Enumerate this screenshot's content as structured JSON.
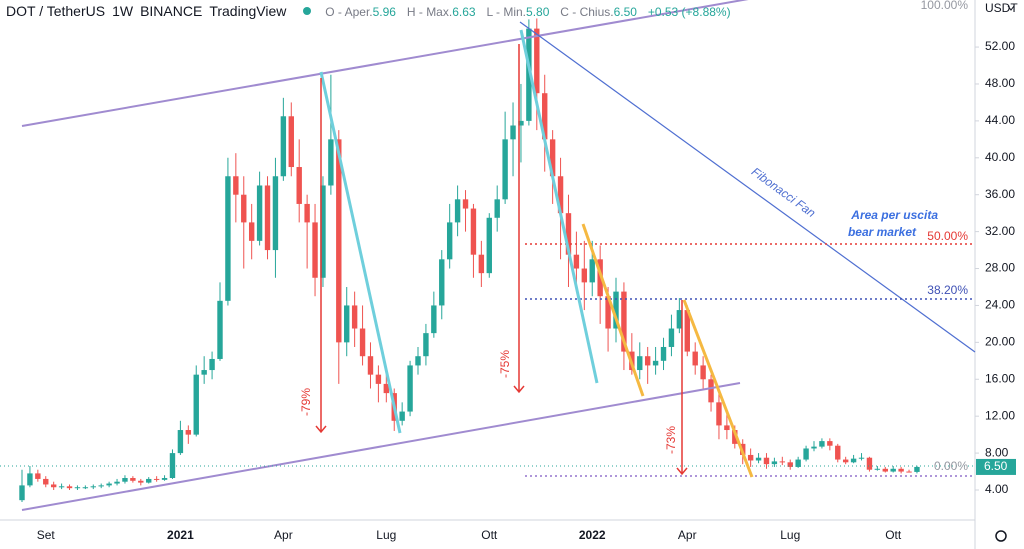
{
  "header": {
    "symbol": "DOT / TetherUS",
    "interval": "1W",
    "exchange": "BINANCE",
    "source": "TradingView",
    "ohlc_labels": [
      "O - Aper.",
      "H - Max.",
      "L - Min.",
      "C - Chius."
    ],
    "ohlc_values": [
      "5.96",
      "6.63",
      "5.80",
      "6.50"
    ],
    "change": "+0.53 (+8.88%)",
    "currency": "USDT"
  },
  "chart_data": {
    "type": "candlestick",
    "up_color": "#26a69a",
    "down_color": "#ef5350",
    "grid": false,
    "categories": [
      null,
      null,
      null,
      "Set",
      null,
      null,
      null,
      null,
      null,
      null,
      null,
      null,
      null,
      null,
      null,
      null,
      null,
      null,
      null,
      null,
      "2021",
      null,
      null,
      null,
      null,
      null,
      null,
      null,
      null,
      null,
      null,
      null,
      null,
      "Apr",
      null,
      null,
      null,
      null,
      null,
      null,
      null,
      null,
      null,
      null,
      null,
      null,
      "Lug",
      null,
      null,
      null,
      null,
      null,
      null,
      null,
      null,
      null,
      null,
      null,
      null,
      "Ott",
      null,
      null,
      null,
      null,
      null,
      null,
      null,
      null,
      null,
      null,
      null,
      null,
      "2022",
      null,
      null,
      null,
      null,
      null,
      null,
      null,
      null,
      null,
      null,
      null,
      "Apr",
      null,
      null,
      null,
      null,
      null,
      null,
      null,
      null,
      null,
      null,
      null,
      null,
      "Lug",
      null,
      null,
      null,
      null,
      null,
      null,
      null,
      null,
      null,
      null,
      null,
      null,
      "Ott",
      null,
      null,
      null
    ],
    "open": [
      2.9,
      4.5,
      5.8,
      5.2,
      4.6,
      4.3,
      4.4,
      4.2,
      4.3,
      4.3,
      4.4,
      4.5,
      4.7,
      4.9,
      5.3,
      5.0,
      4.8,
      5.2,
      5.1,
      5.3,
      8.0,
      10.5,
      10.0,
      16.5,
      17.0,
      18.2,
      24.5,
      38.0,
      36.0,
      33.0,
      31.0,
      37.0,
      30.0,
      38.0,
      44.5,
      39.0,
      35.0,
      33.0,
      27.0,
      37.0,
      42.0,
      20.0,
      24.0,
      21.5,
      18.5,
      16.5,
      15.5,
      14.5,
      11.5,
      12.5,
      17.5,
      18.5,
      21.0,
      24.0,
      29.0,
      33.0,
      35.5,
      34.5,
      29.5,
      27.5,
      33.5,
      35.5,
      42.0,
      43.5,
      44.0,
      54.0,
      47.0,
      42.0,
      38.0,
      34.0,
      29.5,
      28.0,
      26.5,
      29.0,
      25.0,
      21.5,
      25.5,
      19.0,
      17.0,
      18.5,
      17.5,
      18.0,
      19.5,
      21.5,
      23.5,
      19.0,
      17.5,
      16.0,
      13.5,
      11.0,
      10.5,
      9.0,
      7.8,
      7.2,
      7.5,
      6.8,
      7.1,
      7.0,
      6.5,
      7.3,
      8.5,
      8.7,
      9.3,
      8.8,
      7.3,
      7.0,
      7.4,
      7.5,
      6.2,
      6.3,
      6.0,
      6.3,
      6.0,
      5.96
    ],
    "high": [
      6.2,
      6.6,
      6.2,
      5.5,
      4.9,
      4.7,
      4.6,
      4.5,
      4.5,
      4.6,
      4.7,
      4.9,
      5.2,
      5.6,
      5.5,
      5.2,
      5.4,
      5.5,
      5.6,
      8.4,
      11.5,
      11.0,
      17.5,
      18.5,
      19.0,
      26.5,
      40.0,
      40.5,
      38.0,
      35.0,
      38.5,
      38.0,
      40.0,
      46.5,
      46.0,
      42.0,
      36.0,
      35.0,
      38.0,
      49.0,
      43.0,
      26.0,
      25.5,
      24.0,
      20.0,
      17.5,
      16.5,
      15.0,
      13.5,
      18.0,
      19.5,
      22.0,
      25.5,
      30.0,
      35.0,
      37.0,
      36.5,
      35.0,
      31.0,
      34.0,
      37.0,
      45.0,
      46.0,
      48.0,
      55.0,
      55.1,
      49.0,
      43.0,
      40.0,
      36.0,
      32.0,
      31.0,
      31.0,
      30.5,
      26.0,
      27.0,
      26.5,
      21.0,
      20.0,
      19.5,
      19.5,
      20.5,
      23.0,
      24.8,
      24.0,
      20.0,
      18.5,
      16.5,
      14.5,
      12.5,
      11.0,
      9.5,
      8.5,
      8.0,
      8.0,
      7.5,
      7.6,
      7.3,
      7.6,
      8.8,
      9.3,
      9.6,
      9.6,
      9.0,
      7.6,
      7.8,
      8.0,
      7.6,
      6.6,
      6.5,
      6.6,
      6.5,
      6.2,
      6.63
    ],
    "low": [
      2.7,
      4.3,
      4.9,
      4.3,
      4.0,
      4.1,
      4.0,
      4.0,
      4.1,
      4.1,
      4.2,
      4.3,
      4.5,
      4.7,
      4.8,
      4.5,
      4.7,
      4.9,
      5.0,
      5.2,
      7.8,
      9.0,
      9.8,
      15.5,
      16.0,
      18.0,
      24.0,
      33.0,
      28.0,
      29.0,
      30.5,
      29.0,
      27.0,
      37.5,
      38.0,
      33.0,
      28.0,
      25.0,
      26.0,
      36.0,
      15.5,
      18.5,
      19.5,
      17.5,
      15.0,
      13.5,
      13.5,
      10.4,
      11.0,
      12.0,
      16.5,
      17.5,
      20.5,
      22.5,
      28.0,
      31.5,
      32.0,
      27.0,
      26.0,
      27.0,
      32.0,
      35.0,
      38.0,
      39.5,
      43.5,
      43.0,
      38.5,
      35.0,
      29.0,
      26.0,
      26.0,
      23.5,
      25.0,
      22.0,
      19.0,
      20.0,
      17.0,
      16.5,
      16.0,
      15.5,
      16.5,
      17.0,
      18.5,
      21.0,
      18.5,
      16.5,
      15.0,
      12.5,
      9.5,
      9.5,
      8.5,
      6.8,
      6.5,
      6.9,
      6.3,
      6.5,
      6.7,
      6.2,
      6.4,
      7.1,
      8.2,
      8.5,
      8.3,
      7.0,
      6.8,
      6.9,
      7.2,
      6.0,
      6.1,
      5.9,
      5.9,
      5.8,
      5.9,
      5.8
    ],
    "close": [
      4.5,
      5.8,
      5.2,
      4.6,
      4.3,
      4.4,
      4.2,
      4.3,
      4.3,
      4.4,
      4.5,
      4.7,
      4.9,
      5.3,
      5.0,
      4.8,
      5.2,
      5.1,
      5.3,
      8.0,
      10.5,
      10.0,
      16.5,
      17.0,
      18.2,
      24.5,
      38.0,
      36.0,
      33.0,
      31.0,
      37.0,
      30.0,
      38.0,
      44.5,
      39.0,
      35.0,
      33.0,
      27.0,
      37.0,
      42.0,
      20.0,
      24.0,
      21.5,
      18.5,
      16.5,
      15.5,
      14.5,
      11.5,
      12.5,
      17.5,
      18.5,
      21.0,
      24.0,
      29.0,
      33.0,
      35.5,
      34.5,
      29.5,
      27.5,
      33.5,
      35.5,
      42.0,
      43.5,
      44.0,
      54.0,
      47.0,
      42.0,
      38.0,
      34.0,
      29.5,
      28.0,
      26.5,
      29.0,
      25.0,
      21.5,
      25.5,
      19.0,
      17.0,
      18.5,
      17.5,
      18.0,
      19.5,
      21.5,
      23.5,
      19.0,
      17.5,
      16.0,
      13.5,
      11.0,
      10.5,
      9.0,
      7.8,
      7.2,
      7.5,
      6.8,
      7.1,
      7.0,
      6.5,
      7.3,
      8.5,
      8.7,
      9.3,
      8.8,
      7.3,
      7.0,
      7.4,
      7.5,
      6.2,
      6.3,
      6.0,
      6.3,
      6.0,
      5.96,
      6.5
    ],
    "ylim": [
      0.75,
      57.1
    ],
    "yticks": [
      {
        "value": 4,
        "label": "4.00"
      },
      {
        "value": 8,
        "label": "8.00"
      },
      {
        "value": 12,
        "label": "12.00"
      },
      {
        "value": 16,
        "label": "16.00"
      },
      {
        "value": 20,
        "label": "20.00"
      },
      {
        "value": 24,
        "label": "24.00"
      },
      {
        "value": 28,
        "label": "28.00"
      },
      {
        "value": 32,
        "label": "32.00"
      },
      {
        "value": 36,
        "label": "36.00"
      },
      {
        "value": 40,
        "label": "40.00"
      },
      {
        "value": 44,
        "label": "44.00"
      },
      {
        "value": 48,
        "label": "48.00"
      },
      {
        "value": 52,
        "label": "52.00"
      }
    ],
    "annotations": {
      "drops": [
        "-79%",
        "-75%",
        "-73%"
      ],
      "fan": "Fibonacci Fan",
      "area": [
        "Area per uscita",
        "bear market"
      ],
      "fib_levels": [
        "100.00%",
        "50.00%",
        "38.20%",
        "0.00%"
      ]
    }
  }
}
